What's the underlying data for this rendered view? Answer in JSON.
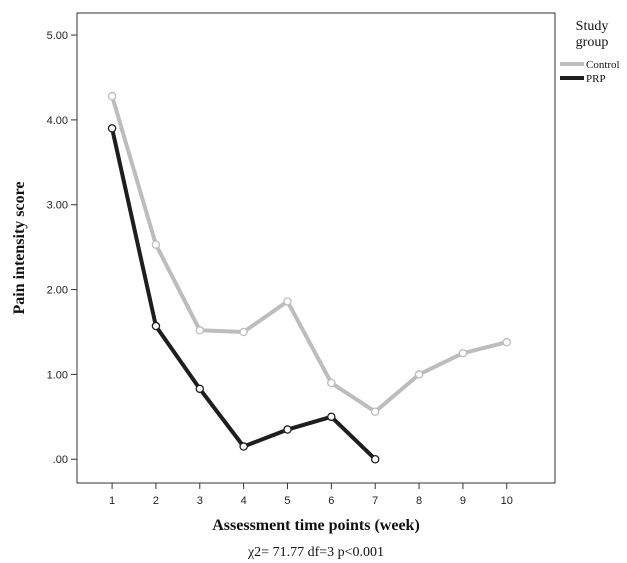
{
  "chart_data": {
    "type": "line",
    "title": "",
    "xlabel": "Assessment time points (week)",
    "ylabel": "Pain intensity score",
    "annotation": "χ2= 71.77 df=3 p<0.001",
    "x_ticks": [
      1,
      2,
      3,
      4,
      5,
      6,
      7,
      8,
      9,
      10
    ],
    "y_ticks": [
      ".00",
      "1.00",
      "2.00",
      "3.00",
      "4.00",
      "5.00"
    ],
    "xlim": [
      0.2,
      11.1
    ],
    "ylim": [
      -0.28,
      5.26
    ],
    "grid": false,
    "legend": {
      "title_line1": "Study",
      "title_line2": "group",
      "placement": "top-right-outside"
    },
    "series": [
      {
        "name": "Control",
        "color": "#bdbdbd",
        "x": [
          1,
          2,
          3,
          4,
          5,
          6,
          7,
          8,
          9,
          10
        ],
        "y": [
          4.28,
          2.53,
          1.52,
          1.5,
          1.86,
          0.9,
          0.56,
          1.0,
          1.25,
          1.38
        ]
      },
      {
        "name": "PRP",
        "color": "#1e1e1e",
        "x": [
          1,
          2,
          3,
          4,
          5,
          6,
          7
        ],
        "y": [
          3.9,
          1.57,
          0.83,
          0.15,
          0.35,
          0.5,
          0.0
        ]
      }
    ]
  }
}
